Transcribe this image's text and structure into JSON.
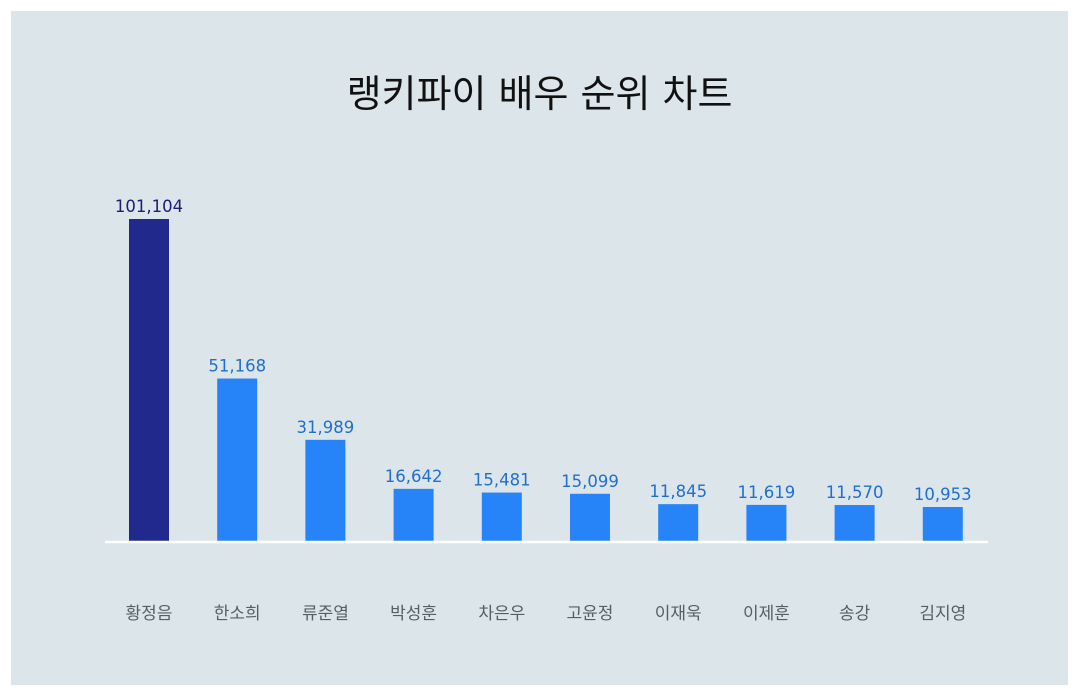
{
  "chart_data": {
    "type": "bar",
    "title": "랭키파이 배우 순위 차트",
    "categories": [
      "황정음",
      "한소희",
      "류준열",
      "박성훈",
      "차은우",
      "고윤정",
      "이재욱",
      "이제훈",
      "송강",
      "김지영"
    ],
    "values": [
      101104,
      51168,
      31989,
      16642,
      15481,
      15099,
      11845,
      11619,
      11570,
      10953
    ],
    "value_labels": [
      "101,104",
      "51,168",
      "31,989",
      "16,642",
      "15,481",
      "15,099",
      "11,845",
      "11,619",
      "11,570",
      "10,953"
    ],
    "xlabel": "",
    "ylabel": "",
    "grid": false,
    "colors": {
      "highlight_bar": "#212a8c",
      "bar": "#2684f8",
      "highlight_label": "#1a2070",
      "label": "#1e6fd0",
      "axis": "#ffffff",
      "background": "#dce6ea"
    }
  }
}
